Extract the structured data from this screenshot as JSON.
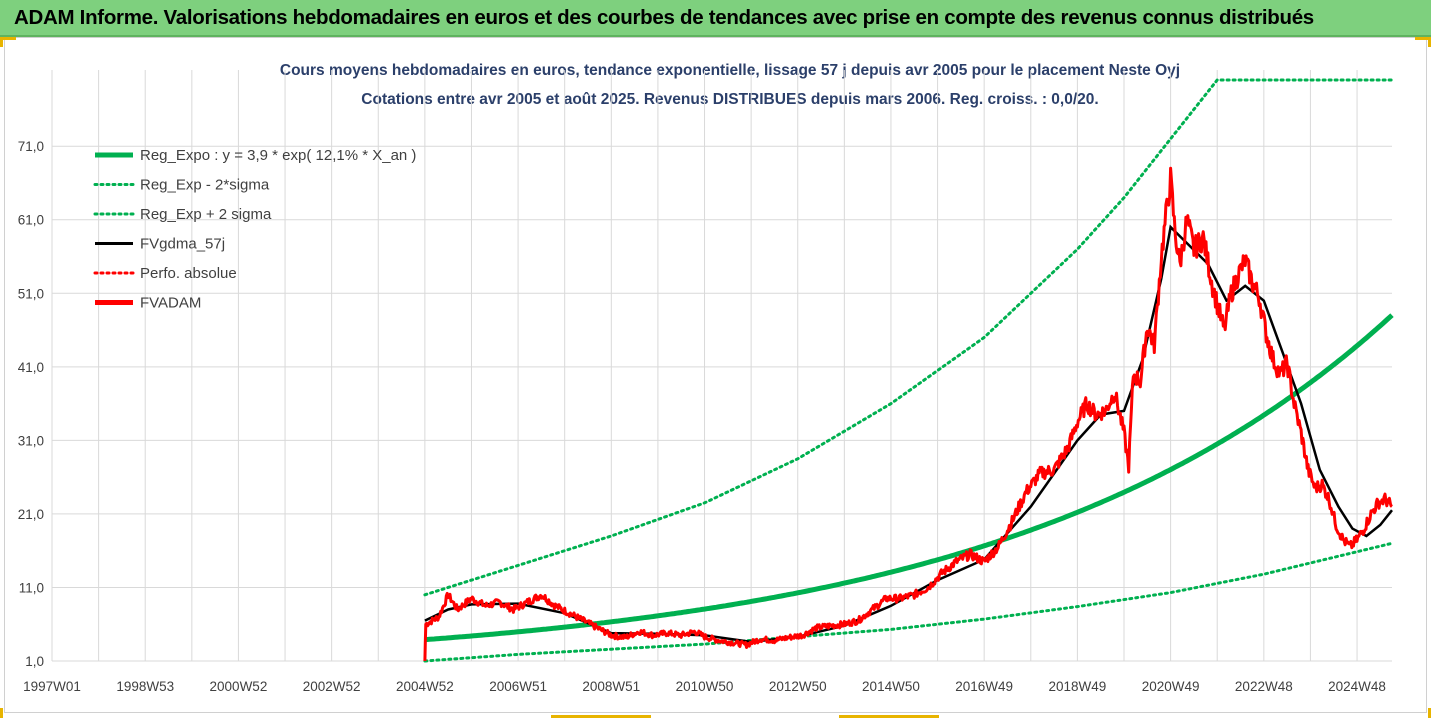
{
  "banner": {
    "title": "ADAM Informe. Valorisations hebdomadaires en euros et des courbes de tendances avec prise en compte des revenus connus distribués"
  },
  "colors": {
    "banner_bg": "#7ed07e",
    "regression": "#00b050",
    "smoothed": "#000000",
    "price": "#ff0000",
    "gridline": "#d9d9d9",
    "title_text": "#2b3f6a"
  },
  "chart_data": {
    "type": "line",
    "title": "Cours moyens hebdomadaires en euros, tendance exponentielle, lissage 57 j depuis avr 2005 pour le placement Neste Oyj",
    "subtitle": "Cotations entre avr 2005 et août 2025. Revenus DISTRIBUES depuis mars 2006. Reg. croiss. : 0,0/20.",
    "xlabel": "",
    "ylabel": "",
    "x_range": [
      1997.0,
      2025.75
    ],
    "ylim": [
      1.0,
      80.0
    ],
    "y_ticks": [
      "1,0",
      "11,0",
      "21,0",
      "31,0",
      "41,0",
      "51,0",
      "61,0",
      "71,0"
    ],
    "y_tick_values": [
      1,
      11,
      21,
      31,
      41,
      51,
      61,
      71
    ],
    "x_tick_labels": [
      "1997W01",
      "1998W53",
      "2000W52",
      "2002W52",
      "2004W52",
      "2006W51",
      "2008W51",
      "2010W50",
      "2012W50",
      "2014W50",
      "2016W49",
      "2018W49",
      "2020W49",
      "2022W48",
      "2024W48"
    ],
    "x_tick_values": [
      1997.0,
      1999.0,
      2001.0,
      2003.0,
      2005.0,
      2007.0,
      2009.0,
      2011.0,
      2013.0,
      2015.0,
      2017.0,
      2019.0,
      2021.0,
      2023.0,
      2025.0
    ],
    "grid": true,
    "legend_position": "top-left",
    "regression": {
      "a": 3.9,
      "rate": 0.121,
      "start": 2005.0
    },
    "series": [
      {
        "name": "Reg_Expo : y = 3,9 * exp( 12,1% *  X_an )",
        "style": "solid-thick",
        "color": "#00b050"
      },
      {
        "name": "Reg_Exp - 2*sigma",
        "style": "dotted",
        "color": "#00b050"
      },
      {
        "name": "Reg_Exp + 2 sigma",
        "style": "dotted",
        "color": "#00b050"
      },
      {
        "name": "FVgdma_57j",
        "style": "solid",
        "color": "#000000"
      },
      {
        "name": "Perfo. absolue",
        "style": "dotted",
        "color": "#ff0000"
      },
      {
        "name": "FVADAM",
        "style": "solid-thick",
        "color": "#ff0000"
      }
    ],
    "reg_expo": {
      "x": [
        2005.0,
        2007.0,
        2009.0,
        2011.0,
        2013.0,
        2015.0,
        2017.0,
        2019.0,
        2021.0,
        2023.0,
        2024.0,
        2025.75
      ],
      "y": [
        3.9,
        5.0,
        6.3,
        8.0,
        10.2,
        13.0,
        16.4,
        20.9,
        26.5,
        33.7,
        38.0,
        46.0
      ]
    },
    "reg_minus_2sigma": {
      "x": [
        2005.0,
        2007.0,
        2009.0,
        2011.0,
        2013.0,
        2015.0,
        2017.0,
        2019.0,
        2021.0,
        2023.0,
        2025.75
      ],
      "y": [
        1.0,
        1.9,
        2.6,
        3.3,
        4.3,
        5.3,
        6.7,
        8.4,
        10.3,
        12.8,
        17.0
      ]
    },
    "reg_plus_2sigma": {
      "x": [
        2005.0,
        2006.0,
        2007.0,
        2009.0,
        2011.0,
        2013.0,
        2015.0,
        2017.0,
        2019.0,
        2020.0,
        2021.0,
        2022.0,
        2022.2,
        2025.75
      ],
      "y": [
        10.0,
        12.0,
        14.0,
        18.0,
        22.5,
        28.5,
        36.0,
        45.0,
        57.0,
        64.0,
        72.0,
        80.0,
        80.0,
        80.0
      ]
    },
    "fvadam": {
      "x": [
        2005.0,
        2005.02,
        2005.3,
        2005.5,
        2005.7,
        2006.0,
        2006.3,
        2006.6,
        2006.9,
        2007.2,
        2007.5,
        2007.8,
        2008.1,
        2008.4,
        2008.7,
        2009.0,
        2009.3,
        2009.6,
        2009.9,
        2010.2,
        2010.5,
        2010.8,
        2011.0,
        2011.3,
        2011.6,
        2011.9,
        2012.2,
        2012.5,
        2012.8,
        2013.1,
        2013.4,
        2013.7,
        2014.0,
        2014.3,
        2014.6,
        2014.9,
        2015.2,
        2015.5,
        2015.8,
        2016.1,
        2016.4,
        2016.7,
        2017.0,
        2017.3,
        2017.6,
        2017.9,
        2018.2,
        2018.5,
        2018.8,
        2019.0,
        2019.2,
        2019.4,
        2019.6,
        2019.8,
        2020.0,
        2020.1,
        2020.2,
        2020.35,
        2020.5,
        2020.65,
        2020.8,
        2020.9,
        2021.0,
        2021.1,
        2021.2,
        2021.35,
        2021.5,
        2021.7,
        2021.9,
        2022.0,
        2022.15,
        2022.3,
        2022.45,
        2022.6,
        2022.75,
        2022.9,
        2023.05,
        2023.2,
        2023.35,
        2023.5,
        2023.65,
        2023.8,
        2023.95,
        2024.1,
        2024.25,
        2024.4,
        2024.55,
        2024.7,
        2024.85,
        2025.0,
        2025.15,
        2025.3,
        2025.45,
        2025.6,
        2025.75
      ],
      "y": [
        1.0,
        6.0,
        7.0,
        10.0,
        8.0,
        9.5,
        8.5,
        9.0,
        8.0,
        9.0,
        10.0,
        8.5,
        7.5,
        6.5,
        5.5,
        4.5,
        4.2,
        5.0,
        4.5,
        4.8,
        4.5,
        5.0,
        4.3,
        3.8,
        3.5,
        3.2,
        4.0,
        3.8,
        4.2,
        4.5,
        5.5,
        5.8,
        6.0,
        6.5,
        8.0,
        9.5,
        9.5,
        10.0,
        11.0,
        13.0,
        14.5,
        15.5,
        14.5,
        16.5,
        20.0,
        24.0,
        26.5,
        27.0,
        30.0,
        33.5,
        36.0,
        34.5,
        35.0,
        37.5,
        32.0,
        27.5,
        40.0,
        39.0,
        46.5,
        44.0,
        56.0,
        61.5,
        66.5,
        59.0,
        55.0,
        61.0,
        57.0,
        58.5,
        52.0,
        49.5,
        46.0,
        51.0,
        53.5,
        55.5,
        52.5,
        50.5,
        45.5,
        42.0,
        40.0,
        41.5,
        36.0,
        32.0,
        27.0,
        24.5,
        25.0,
        23.0,
        19.5,
        17.5,
        16.5,
        17.5,
        19.0,
        21.0,
        22.5,
        23.0,
        22.0
      ]
    },
    "fvgdma_57j": {
      "x": [
        2005.0,
        2005.5,
        2006.0,
        2007.0,
        2008.0,
        2009.0,
        2010.0,
        2011.0,
        2012.0,
        2013.0,
        2014.0,
        2015.0,
        2016.0,
        2017.0,
        2018.0,
        2019.0,
        2019.5,
        2020.0,
        2020.4,
        2020.8,
        2021.0,
        2021.4,
        2021.8,
        2022.2,
        2022.6,
        2023.0,
        2023.4,
        2023.8,
        2024.2,
        2024.6,
        2024.9,
        2025.2,
        2025.5,
        2025.75
      ],
      "y": [
        6.5,
        8.0,
        8.7,
        8.8,
        7.5,
        4.8,
        4.7,
        4.5,
        3.6,
        4.3,
        5.8,
        8.5,
        12.0,
        14.8,
        22.0,
        31.0,
        34.5,
        35.0,
        42.0,
        53.0,
        60.0,
        57.5,
        55.0,
        50.0,
        52.0,
        50.0,
        43.0,
        36.0,
        27.0,
        22.0,
        19.0,
        18.0,
        19.5,
        21.5
      ]
    }
  }
}
